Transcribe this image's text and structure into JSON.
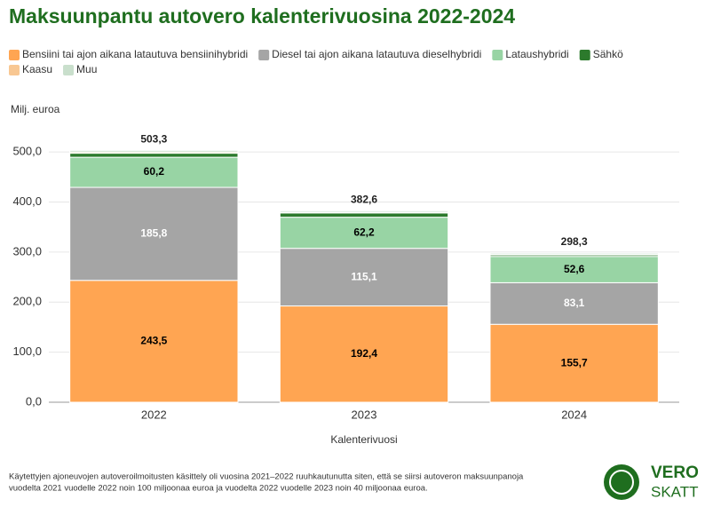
{
  "chart_data": {
    "type": "stacked-bar",
    "title": "Maksuunpantu autovero kalenterivuosina 2022-2024",
    "y_axis_label": "Milj. euroa",
    "x_axis_label": "Kalenterivuosi",
    "categories": [
      "2022",
      "2023",
      "2024"
    ],
    "series": [
      {
        "name": "Bensiini tai ajon aikana latautuva bensiinihybridi",
        "color": "#ffa552",
        "label_color": "#000000",
        "values": [
          243.5,
          192.4,
          155.7
        ],
        "value_labels": [
          "243,5",
          "192,4",
          "155,7"
        ]
      },
      {
        "name": "Diesel tai ajon aikana latautuva dieselhybridi",
        "color": "#a5a5a5",
        "label_color": "#ffffff",
        "values": [
          185.8,
          115.1,
          83.1
        ],
        "value_labels": [
          "185,8",
          "115,1",
          "83,1"
        ]
      },
      {
        "name": "Lataushybridi",
        "color": "#98d4a4",
        "label_color": "#000000",
        "values": [
          60.2,
          62.2,
          52.6
        ],
        "value_labels": [
          "60,2",
          "62,2",
          "52,6"
        ]
      },
      {
        "name": "Sähkö",
        "color": "#2c7a2c",
        "values": [
          8.0,
          8.5,
          3.0
        ]
      },
      {
        "name": "Kaasu",
        "color": "#f8c792",
        "values": [
          2.5,
          1.5,
          1.5
        ]
      },
      {
        "name": "Muu",
        "color": "#c9dfcc",
        "values": [
          3.3,
          2.9,
          2.4
        ]
      }
    ],
    "totals": [
      503.3,
      382.6,
      298.3
    ],
    "total_labels": [
      "503,3",
      "382,6",
      "298,3"
    ],
    "ylim": [
      0,
      550
    ],
    "yticks": [
      {
        "value": 0,
        "label": "0,0"
      },
      {
        "value": 100,
        "label": "100,0"
      },
      {
        "value": 200,
        "label": "200,0"
      },
      {
        "value": 300,
        "label": "300,0"
      },
      {
        "value": 400,
        "label": "400,0"
      },
      {
        "value": 500,
        "label": "500,0"
      }
    ],
    "grid": true,
    "footnote": [
      "Käytettyjen ajoneuvojen autoveroilmoitusten käsittely oli vuosina 2021–2022 ruuhkautunutta siten, että se siirsi autoveron maksuunpanoja",
      "vuodelta 2021 vuodelle 2022 noin 100 miljoonaa euroa ja vuodelta 2022 vuodelle 2023 noin 40 miljoonaa euroa."
    ],
    "logo": [
      "VERO",
      "SKATT"
    ]
  }
}
